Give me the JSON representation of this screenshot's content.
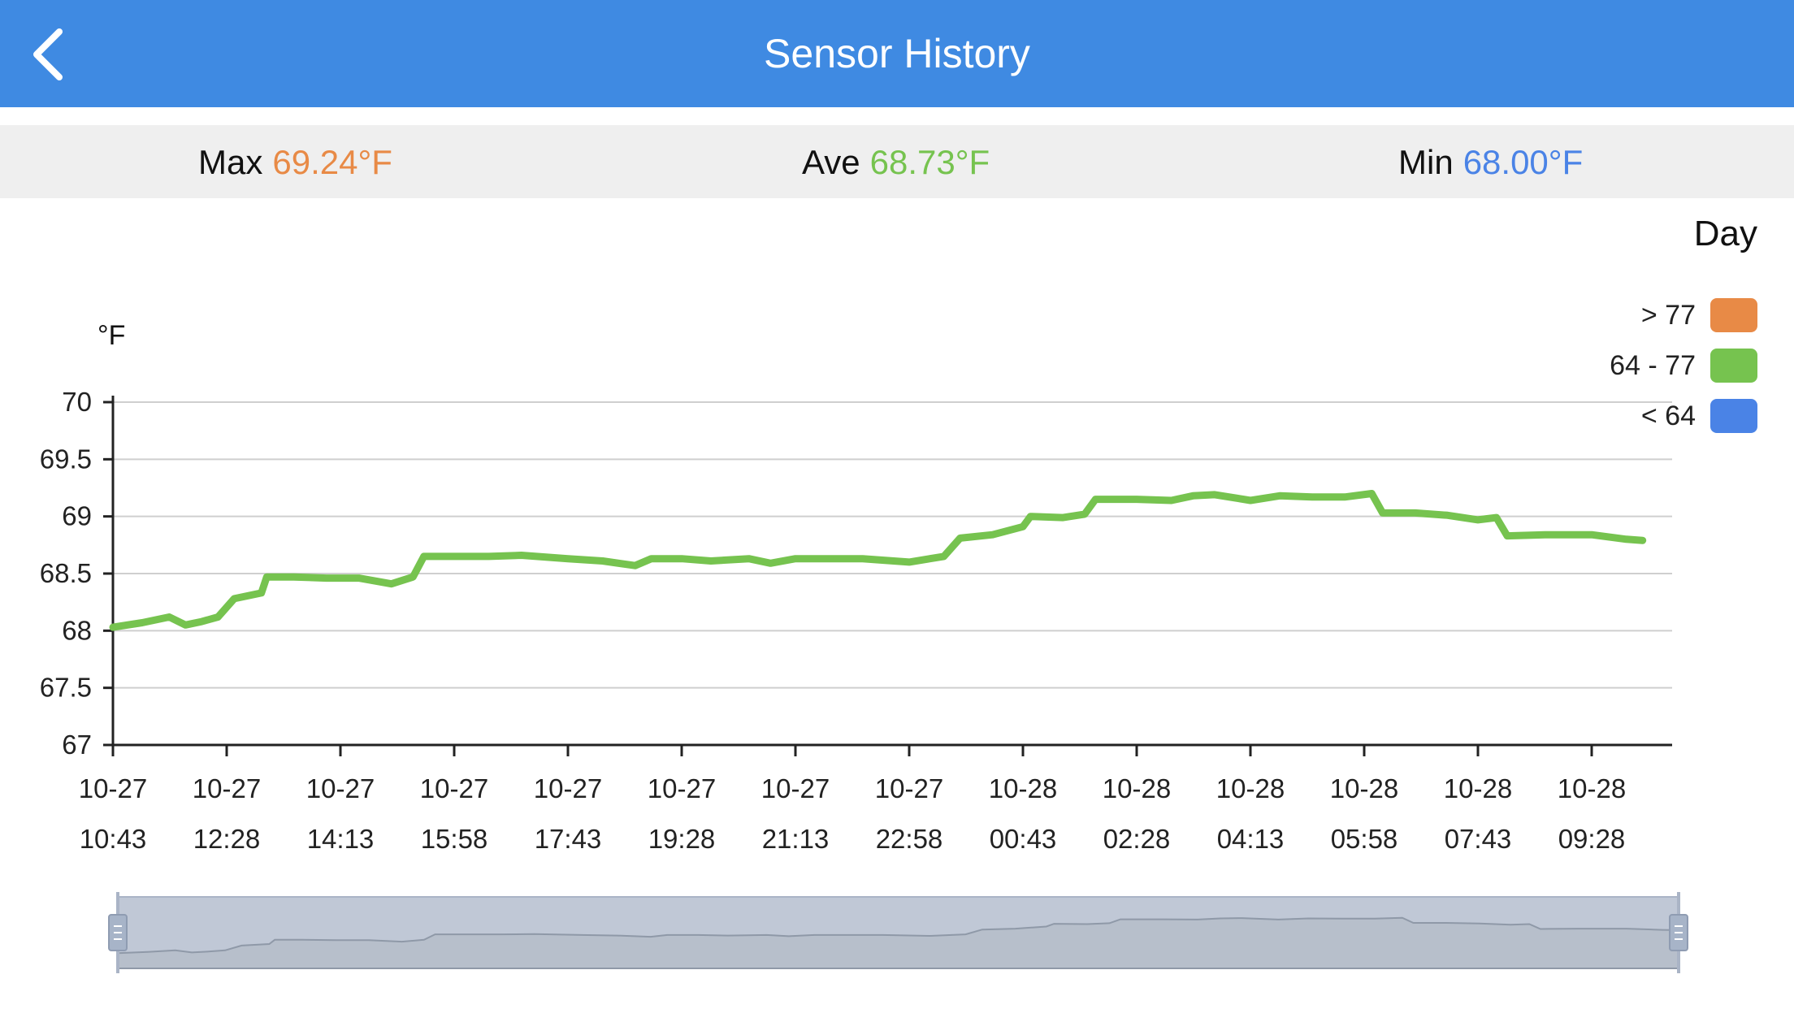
{
  "header": {
    "title": "Sensor History",
    "back_icon": "chevron-left-icon"
  },
  "stats": {
    "max": {
      "label": "Max",
      "value": "69.24°F",
      "color": "#e88a46"
    },
    "ave": {
      "label": "Ave",
      "value": "68.73°F",
      "color": "#76c34f"
    },
    "min": {
      "label": "Min",
      "value": "68.00°F",
      "color": "#4a83e6"
    }
  },
  "range": {
    "selected": "Day"
  },
  "legend": [
    {
      "label": "> 77",
      "color": "#e88a46"
    },
    {
      "label": "64 - 77",
      "color": "#76c34f"
    },
    {
      "label": "< 64",
      "color": "#4a83e6"
    }
  ],
  "chart_data": {
    "type": "line",
    "ylabel": "°F",
    "ylim": [
      67,
      70
    ],
    "yticks": [
      "70",
      "69.5",
      "69",
      "68.5",
      "68",
      "67.5",
      "67"
    ],
    "xticks": [
      {
        "date": "10-27",
        "time": "10:43"
      },
      {
        "date": "10-27",
        "time": "12:28"
      },
      {
        "date": "10-27",
        "time": "14:13"
      },
      {
        "date": "10-27",
        "time": "15:58"
      },
      {
        "date": "10-27",
        "time": "17:43"
      },
      {
        "date": "10-27",
        "time": "19:28"
      },
      {
        "date": "10-27",
        "time": "21:13"
      },
      {
        "date": "10-27",
        "time": "22:58"
      },
      {
        "date": "10-28",
        "time": "00:43"
      },
      {
        "date": "10-28",
        "time": "02:28"
      },
      {
        "date": "10-28",
        "time": "04:13"
      },
      {
        "date": "10-28",
        "time": "05:58"
      },
      {
        "date": "10-28",
        "time": "07:43"
      },
      {
        "date": "10-28",
        "time": "09:28"
      }
    ],
    "grid": true,
    "series": [
      {
        "color": "#76c34f",
        "points": [
          [
            "10-27 10:43",
            68.03
          ],
          [
            "10-27 11:10",
            68.07
          ],
          [
            "10-27 11:35",
            68.12
          ],
          [
            "10-27 11:50",
            68.05
          ],
          [
            "10-27 12:05",
            68.08
          ],
          [
            "10-27 12:20",
            68.12
          ],
          [
            "10-27 12:35",
            68.28
          ],
          [
            "10-27 13:00",
            68.33
          ],
          [
            "10-27 13:05",
            68.47
          ],
          [
            "10-27 13:30",
            68.47
          ],
          [
            "10-27 14:00",
            68.46
          ],
          [
            "10-27 14:30",
            68.46
          ],
          [
            "10-27 15:00",
            68.41
          ],
          [
            "10-27 15:20",
            68.47
          ],
          [
            "10-27 15:30",
            68.65
          ],
          [
            "10-27 16:00",
            68.65
          ],
          [
            "10-27 16:30",
            68.65
          ],
          [
            "10-27 17:00",
            68.66
          ],
          [
            "10-27 17:43",
            68.63
          ],
          [
            "10-27 18:15",
            68.61
          ],
          [
            "10-27 18:45",
            68.57
          ],
          [
            "10-27 19:00",
            68.63
          ],
          [
            "10-27 19:28",
            68.63
          ],
          [
            "10-27 19:55",
            68.61
          ],
          [
            "10-27 20:30",
            68.63
          ],
          [
            "10-27 20:50",
            68.59
          ],
          [
            "10-27 21:13",
            68.63
          ],
          [
            "10-27 21:45",
            68.63
          ],
          [
            "10-27 22:15",
            68.63
          ],
          [
            "10-27 22:58",
            68.6
          ],
          [
            "10-27 23:30",
            68.65
          ],
          [
            "10-27 23:45",
            68.81
          ],
          [
            "10-28 00:15",
            68.84
          ],
          [
            "10-28 00:43",
            68.91
          ],
          [
            "10-28 00:50",
            69.0
          ],
          [
            "10-28 01:20",
            68.99
          ],
          [
            "10-28 01:40",
            69.02
          ],
          [
            "10-28 01:50",
            69.15
          ],
          [
            "10-28 02:28",
            69.15
          ],
          [
            "10-28 03:00",
            69.14
          ],
          [
            "10-28 03:20",
            69.18
          ],
          [
            "10-28 03:40",
            69.19
          ],
          [
            "10-28 04:13",
            69.14
          ],
          [
            "10-28 04:40",
            69.18
          ],
          [
            "10-28 05:10",
            69.17
          ],
          [
            "10-28 05:40",
            69.17
          ],
          [
            "10-28 06:05",
            69.2
          ],
          [
            "10-28 06:15",
            69.03
          ],
          [
            "10-28 06:45",
            69.03
          ],
          [
            "10-28 07:15",
            69.01
          ],
          [
            "10-28 07:43",
            68.97
          ],
          [
            "10-28 08:00",
            68.99
          ],
          [
            "10-28 08:10",
            68.83
          ],
          [
            "10-28 08:45",
            68.84
          ],
          [
            "10-28 09:28",
            68.84
          ],
          [
            "10-28 10:00",
            68.8
          ],
          [
            "10-28 10:15",
            68.79
          ]
        ]
      }
    ]
  }
}
